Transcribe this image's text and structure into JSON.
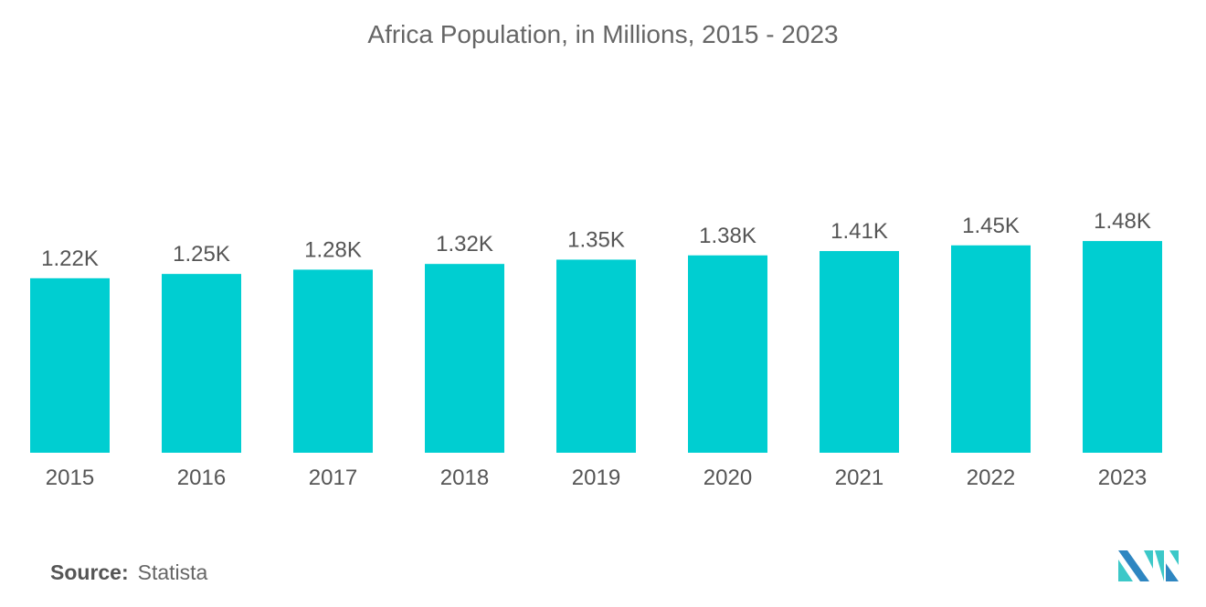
{
  "chart_data": {
    "type": "bar",
    "title": "Africa Population, in Millions, 2015 - 2023",
    "xlabel": "",
    "ylabel": "",
    "categories": [
      "2015",
      "2016",
      "2017",
      "2018",
      "2019",
      "2020",
      "2021",
      "2022",
      "2023"
    ],
    "values": [
      1.22,
      1.25,
      1.28,
      1.32,
      1.35,
      1.38,
      1.41,
      1.45,
      1.48
    ],
    "data_labels": [
      "1.22K",
      "1.25K",
      "1.28K",
      "1.32K",
      "1.35K",
      "1.38K",
      "1.41K",
      "1.45K",
      "1.48K"
    ],
    "value_unit": "K",
    "ylim": [
      0,
      1.48
    ],
    "grid": false,
    "bar_color": "#00CED1"
  },
  "source": {
    "label": "Source:",
    "value": "Statista"
  },
  "logo": {
    "colors": [
      "#2E86C1",
      "#3CC8C8"
    ]
  }
}
